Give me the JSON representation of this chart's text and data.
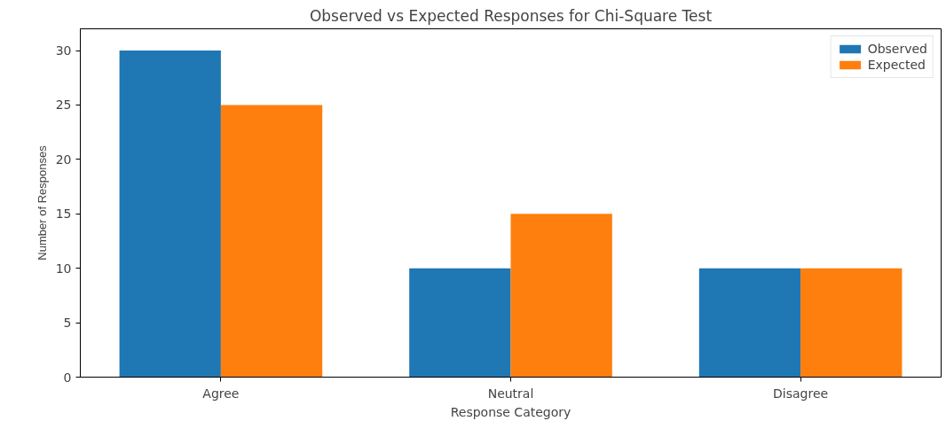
{
  "chart_data": {
    "type": "bar",
    "title": "Observed vs Expected Responses for Chi-Square Test",
    "xlabel": "Response Category",
    "ylabel": "Number of Responses",
    "categories": [
      "Agree",
      "Neutral",
      "Disagree"
    ],
    "series": [
      {
        "name": "Observed",
        "color": "#1f77b4",
        "values": [
          30,
          10,
          10
        ]
      },
      {
        "name": "Expected",
        "color": "#ff7f0e",
        "values": [
          25,
          15,
          10
        ]
      }
    ],
    "ylim": [
      0,
      32
    ],
    "yticks": [
      0,
      5,
      10,
      15,
      20,
      25,
      30
    ],
    "grid": false,
    "legend": "top right"
  }
}
